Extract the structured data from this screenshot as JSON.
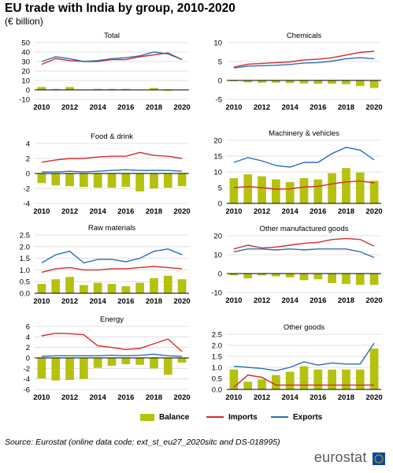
{
  "header": {
    "title": "EU trade with India by group, 2010-2020",
    "subtitle": "(€ billion)"
  },
  "legend": {
    "items": [
      {
        "label": "Balance",
        "color": "#b5c10f",
        "kind": "bar"
      },
      {
        "label": "Imports",
        "color": "#d62b2b",
        "kind": "line"
      },
      {
        "label": "Exports",
        "color": "#2a6ebb",
        "kind": "line"
      }
    ]
  },
  "footer": {
    "source": "Source: Eurostat (online data code: ext_st_eu27_2020sitc and DS-018995)",
    "logo": "eurostat"
  },
  "chart_data": [
    {
      "type": "bar+line",
      "title": "Total",
      "categories": [
        2010,
        2011,
        2012,
        2013,
        2014,
        2015,
        2016,
        2017,
        2018,
        2019,
        2020
      ],
      "x_tick_labels": [
        "2010",
        "2012",
        "2014",
        "2016",
        "2018",
        "2020"
      ],
      "ylim": [
        -10,
        50
      ],
      "y_ticks": [
        -10,
        0,
        10,
        20,
        30,
        40,
        50
      ],
      "series": [
        {
          "name": "Balance",
          "type": "bar",
          "values": [
            3,
            1,
            3,
            0,
            1,
            1,
            1,
            0,
            2,
            -1,
            0
          ]
        },
        {
          "name": "Imports",
          "type": "line",
          "values": [
            27,
            33,
            31,
            30,
            30,
            32,
            32,
            35,
            37,
            39,
            32
          ]
        },
        {
          "name": "Exports",
          "type": "line",
          "values": [
            30,
            35,
            33,
            30,
            31,
            33,
            34,
            36,
            40,
            38,
            32
          ]
        }
      ]
    },
    {
      "type": "bar+line",
      "title": "Chemicals",
      "categories": [
        2010,
        2011,
        2012,
        2013,
        2014,
        2015,
        2016,
        2017,
        2018,
        2019,
        2020
      ],
      "x_tick_labels": [
        "2010",
        "2012",
        "2014",
        "2016",
        "2018",
        "2020"
      ],
      "ylim": [
        -5,
        10
      ],
      "y_ticks": [
        -5,
        0,
        5,
        10
      ],
      "series": [
        {
          "name": "Balance",
          "type": "bar",
          "values": [
            -0.2,
            -0.5,
            -0.6,
            -0.6,
            -0.7,
            -0.8,
            -0.9,
            -0.9,
            -1.0,
            -1.5,
            -2.0
          ]
        },
        {
          "name": "Imports",
          "type": "line",
          "values": [
            3.5,
            4.3,
            4.5,
            4.7,
            4.9,
            5.4,
            5.6,
            6.0,
            6.7,
            7.4,
            7.7
          ]
        },
        {
          "name": "Exports",
          "type": "line",
          "values": [
            3.3,
            3.8,
            3.9,
            4.0,
            4.2,
            4.6,
            4.7,
            5.1,
            5.7,
            6.0,
            5.7
          ]
        }
      ]
    },
    {
      "type": "bar+line",
      "title": "Food & drink",
      "categories": [
        2010,
        2011,
        2012,
        2013,
        2014,
        2015,
        2016,
        2017,
        2018,
        2019,
        2020
      ],
      "x_tick_labels": [
        "2010",
        "2012",
        "2014",
        "2016",
        "2018",
        "2020"
      ],
      "ylim": [
        -4,
        4
      ],
      "y_ticks": [
        -4,
        -2,
        0,
        2,
        4
      ],
      "series": [
        {
          "name": "Balance",
          "type": "bar",
          "values": [
            -1.3,
            -1.6,
            -1.7,
            -1.8,
            -1.9,
            -1.9,
            -1.8,
            -2.4,
            -2.0,
            -1.9,
            -1.7
          ]
        },
        {
          "name": "Imports",
          "type": "line",
          "values": [
            1.5,
            1.8,
            2.0,
            2.0,
            2.2,
            2.3,
            2.3,
            2.8,
            2.4,
            2.3,
            2.0
          ]
        },
        {
          "name": "Exports",
          "type": "line",
          "values": [
            0.2,
            0.2,
            0.3,
            0.2,
            0.3,
            0.4,
            0.5,
            0.4,
            0.4,
            0.4,
            0.3
          ]
        }
      ]
    },
    {
      "type": "bar+line",
      "title": "Machinery & vehicles",
      "categories": [
        2010,
        2011,
        2012,
        2013,
        2014,
        2015,
        2016,
        2017,
        2018,
        2019,
        2020
      ],
      "x_tick_labels": [
        "2010",
        "2012",
        "2014",
        "2016",
        "2018",
        "2020"
      ],
      "ylim": [
        0,
        20
      ],
      "y_ticks": [
        0,
        5,
        10,
        15,
        20
      ],
      "series": [
        {
          "name": "Balance",
          "type": "bar",
          "values": [
            8.0,
            9.2,
            8.6,
            7.6,
            6.8,
            8.0,
            7.6,
            9.6,
            11.2,
            9.8,
            7.2
          ]
        },
        {
          "name": "Imports",
          "type": "line",
          "values": [
            5.0,
            5.3,
            5.0,
            4.5,
            4.6,
            5.2,
            5.4,
            6.2,
            6.8,
            7.1,
            6.5
          ]
        },
        {
          "name": "Exports",
          "type": "line",
          "values": [
            13.0,
            14.5,
            13.5,
            12.0,
            11.5,
            13.0,
            13.0,
            15.8,
            17.8,
            16.9,
            13.8
          ]
        }
      ]
    },
    {
      "type": "bar+line",
      "title": "Raw materials",
      "categories": [
        2010,
        2011,
        2012,
        2013,
        2014,
        2015,
        2016,
        2017,
        2018,
        2019,
        2020
      ],
      "x_tick_labels": [
        "2010",
        "2012",
        "2014",
        "2016",
        "2018",
        "2020"
      ],
      "ylim": [
        0,
        2.5
      ],
      "y_ticks": [
        0.0,
        0.5,
        1.0,
        1.5,
        2.0,
        2.5
      ],
      "series": [
        {
          "name": "Balance",
          "type": "bar",
          "values": [
            0.4,
            0.6,
            0.7,
            0.35,
            0.45,
            0.4,
            0.3,
            0.45,
            0.65,
            0.75,
            0.6
          ]
        },
        {
          "name": "Imports",
          "type": "line",
          "values": [
            0.9,
            1.05,
            1.1,
            1.0,
            1.0,
            1.05,
            1.05,
            1.1,
            1.15,
            1.1,
            1.05
          ]
        },
        {
          "name": "Exports",
          "type": "line",
          "values": [
            1.3,
            1.65,
            1.8,
            1.3,
            1.45,
            1.45,
            1.35,
            1.5,
            1.8,
            1.9,
            1.65
          ]
        }
      ]
    },
    {
      "type": "bar+line",
      "title": "Other manufactured goods",
      "categories": [
        2010,
        2011,
        2012,
        2013,
        2014,
        2015,
        2016,
        2017,
        2018,
        2019,
        2020
      ],
      "x_tick_labels": [
        "2010",
        "2012",
        "2014",
        "2016",
        "2018",
        "2020"
      ],
      "ylim": [
        -10,
        20
      ],
      "y_ticks": [
        -10,
        0,
        10,
        20
      ],
      "series": [
        {
          "name": "Balance",
          "type": "bar",
          "values": [
            -1.0,
            -2.5,
            -1.0,
            -1.5,
            -2.0,
            -3.5,
            -3.0,
            -5.0,
            -5.5,
            -6.0,
            -6.0
          ]
        },
        {
          "name": "Imports",
          "type": "line",
          "values": [
            13.0,
            15.0,
            13.5,
            14.0,
            15.0,
            16.0,
            16.5,
            18.0,
            18.5,
            18.0,
            14.5
          ]
        },
        {
          "name": "Exports",
          "type": "line",
          "values": [
            11.5,
            13.0,
            13.0,
            12.5,
            13.0,
            12.5,
            13.0,
            13.0,
            13.0,
            11.5,
            8.5
          ]
        }
      ]
    },
    {
      "type": "bar+line",
      "title": "Energy",
      "categories": [
        2010,
        2011,
        2012,
        2013,
        2014,
        2015,
        2016,
        2017,
        2018,
        2019,
        2020
      ],
      "x_tick_labels": [
        "2010",
        "2012",
        "2014",
        "2016",
        "2018",
        "2020"
      ],
      "ylim": [
        -6,
        6
      ],
      "y_ticks": [
        -6,
        -4,
        -2,
        0,
        2,
        4,
        6
      ],
      "series": [
        {
          "name": "Balance",
          "type": "bar",
          "values": [
            -3.9,
            -4.3,
            -4.2,
            -4.0,
            -1.9,
            -1.5,
            -1.2,
            -1.3,
            -2.0,
            -3.2,
            -0.9
          ]
        },
        {
          "name": "Imports",
          "type": "line",
          "values": [
            4.2,
            4.7,
            4.6,
            4.4,
            2.3,
            2.0,
            1.6,
            1.8,
            2.7,
            3.6,
            1.2
          ]
        },
        {
          "name": "Exports",
          "type": "line",
          "values": [
            0.3,
            0.4,
            0.4,
            0.4,
            0.4,
            0.5,
            0.4,
            0.5,
            0.7,
            0.4,
            0.3
          ]
        }
      ]
    },
    {
      "type": "bar+line",
      "title": "Other goods",
      "categories": [
        2010,
        2011,
        2012,
        2013,
        2014,
        2015,
        2016,
        2017,
        2018,
        2019,
        2020
      ],
      "x_tick_labels": [
        "2010",
        "2012",
        "2014",
        "2016",
        "2018",
        "2020"
      ],
      "ylim": [
        0,
        2.5
      ],
      "y_ticks": [
        0.0,
        0.5,
        1.0,
        1.5,
        2.0,
        2.5
      ],
      "series": [
        {
          "name": "Balance",
          "type": "bar",
          "values": [
            0.9,
            0.35,
            0.45,
            0.65,
            0.8,
            1.05,
            0.9,
            0.9,
            0.9,
            0.9,
            1.85
          ]
        },
        {
          "name": "Imports",
          "type": "line",
          "values": [
            0.1,
            0.65,
            0.55,
            0.2,
            0.2,
            0.2,
            0.2,
            0.2,
            0.2,
            0.2,
            0.2
          ]
        },
        {
          "name": "Exports",
          "type": "line",
          "values": [
            1.05,
            1.0,
            0.95,
            0.85,
            1.0,
            1.25,
            1.1,
            1.2,
            1.15,
            1.15,
            2.1
          ]
        }
      ]
    }
  ]
}
